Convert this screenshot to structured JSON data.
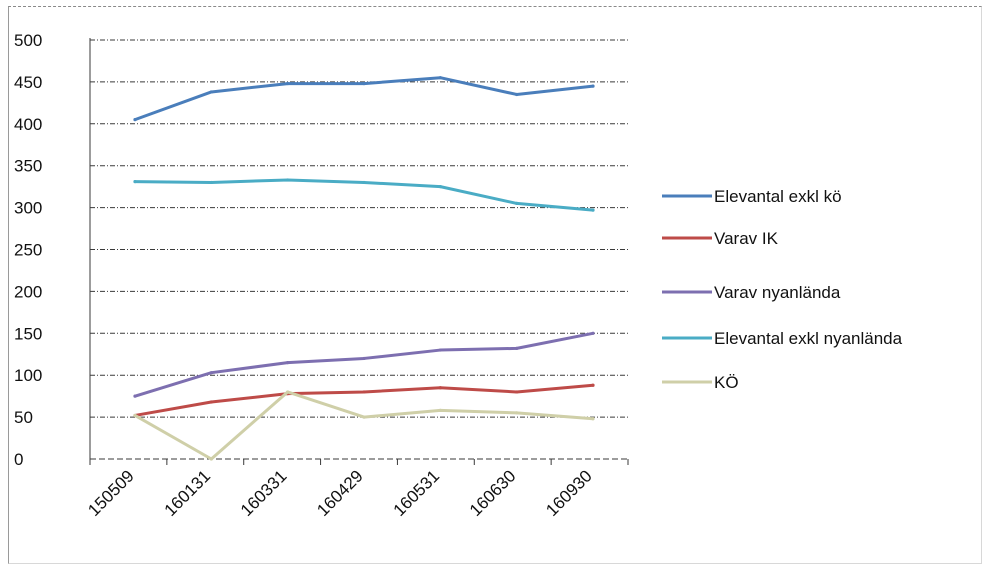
{
  "chart_data": {
    "type": "line",
    "categories": [
      "150509",
      "160131",
      "160331",
      "160429",
      "160531",
      "160630",
      "160930"
    ],
    "ylim": [
      0,
      500
    ],
    "yticks": [
      0,
      50,
      100,
      150,
      200,
      250,
      300,
      350,
      400,
      450,
      500
    ],
    "grid": true,
    "legend_position": "right",
    "series": [
      {
        "name": "Elevantal exkl kö",
        "color": "#4a7ebb",
        "values": [
          405,
          438,
          448,
          448,
          455,
          435,
          445
        ]
      },
      {
        "name": "Varav IK",
        "color": "#be4b48",
        "values": [
          52,
          68,
          78,
          80,
          85,
          80,
          88
        ]
      },
      {
        "name": "Varav nyanlända",
        "color": "#7d6fb0",
        "values": [
          75,
          103,
          115,
          120,
          130,
          132,
          150
        ]
      },
      {
        "name": "Elevantal exkl nyanlända",
        "color": "#4aacc5",
        "values": [
          331,
          330,
          333,
          330,
          325,
          305,
          297
        ]
      },
      {
        "name": "KÖ",
        "color": "#cfcfa8",
        "values": [
          52,
          0,
          80,
          50,
          58,
          55,
          48
        ]
      }
    ]
  }
}
